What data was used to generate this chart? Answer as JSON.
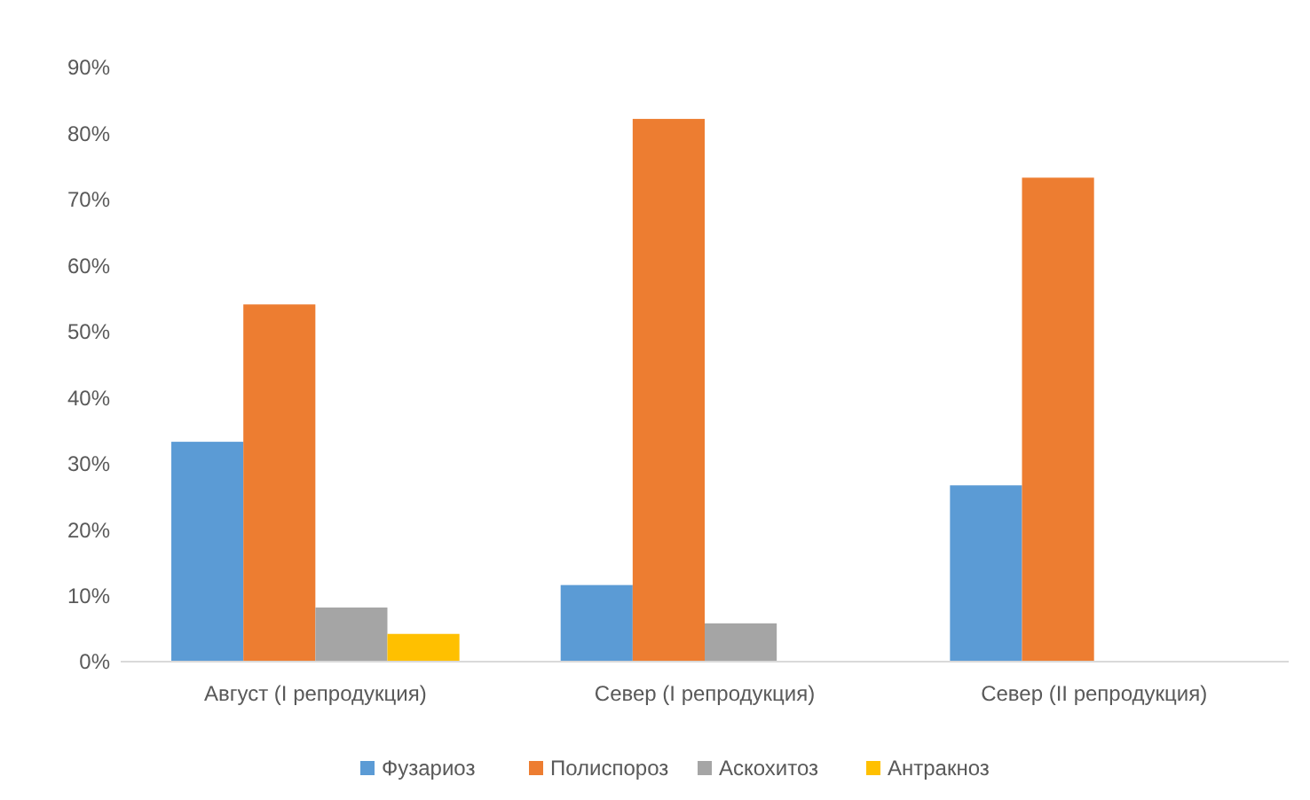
{
  "chart_data": {
    "type": "bar",
    "categories": [
      "Август (I репродукция)",
      "Север (I репродукция)",
      "Север (II репродукция)"
    ],
    "series": [
      {
        "name": "Фузариоз",
        "color": "#5b9bd5",
        "values": [
          33.3,
          11.6,
          26.7
        ]
      },
      {
        "name": "Полиспороз",
        "color": "#ed7d31",
        "values": [
          54.1,
          82.2,
          73.3
        ]
      },
      {
        "name": "Аскохитоз",
        "color": "#a5a5a5",
        "values": [
          8.2,
          5.8,
          0
        ]
      },
      {
        "name": "Антракноз",
        "color": "#ffc000",
        "values": [
          4.2,
          0,
          0
        ]
      }
    ],
    "ylim": [
      0,
      90
    ],
    "yticks": [
      {
        "value": 0,
        "label": "0%"
      },
      {
        "value": 10,
        "label": "10%"
      },
      {
        "value": 20,
        "label": "20%"
      },
      {
        "value": 30,
        "label": "30%"
      },
      {
        "value": 40,
        "label": "40%"
      },
      {
        "value": 50,
        "label": "50%"
      },
      {
        "value": 60,
        "label": "60%"
      },
      {
        "value": 70,
        "label": "70%"
      },
      {
        "value": 80,
        "label": "80%"
      },
      {
        "value": 90,
        "label": "90%"
      }
    ],
    "grid": false,
    "legend": "bottom"
  }
}
